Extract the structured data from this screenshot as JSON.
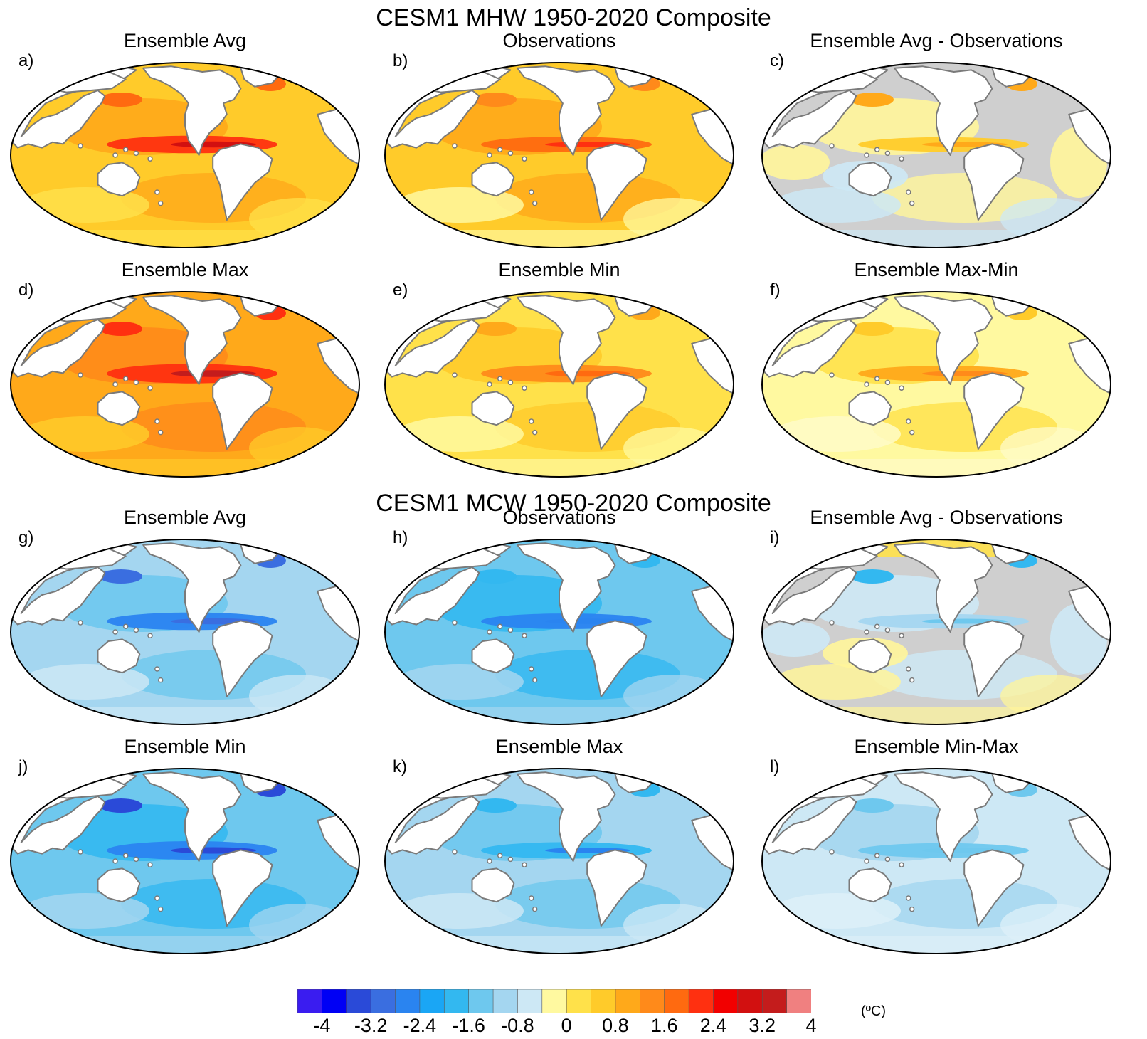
{
  "titles": {
    "top": "CESM1 MHW 1950-2020 Composite",
    "bottom": "CESM1 MCW 1950-2020 Composite"
  },
  "panels": [
    {
      "letter": "a)",
      "title": "Ensemble Avg",
      "scheme": "warm-strong"
    },
    {
      "letter": "b)",
      "title": "Observations",
      "scheme": "warm-obs"
    },
    {
      "letter": "c)",
      "title": "Ensemble Avg - Observations",
      "scheme": "diff-warm"
    },
    {
      "letter": "d)",
      "title": "Ensemble Max",
      "scheme": "warm-max"
    },
    {
      "letter": "e)",
      "title": "Ensemble Min",
      "scheme": "warm-min"
    },
    {
      "letter": "f)",
      "title": "Ensemble Max-Min",
      "scheme": "warm-range"
    },
    {
      "letter": "g)",
      "title": "Ensemble Avg",
      "scheme": "cool-strong"
    },
    {
      "letter": "h)",
      "title": "Observations",
      "scheme": "cool-obs"
    },
    {
      "letter": "i)",
      "title": "Ensemble Avg - Observations",
      "scheme": "diff-cool"
    },
    {
      "letter": "j)",
      "title": "Ensemble Min",
      "scheme": "cool-max"
    },
    {
      "letter": "k)",
      "title": "Ensemble Max",
      "scheme": "cool-min"
    },
    {
      "letter": "l)",
      "title": "Ensemble Min-Max",
      "scheme": "cool-range"
    }
  ],
  "colorbar": {
    "unit": "(ºC)",
    "ticks": [
      "-4",
      "-3.2",
      "-2.4",
      "-1.6",
      "-0.8",
      "0",
      "0.8",
      "1.6",
      "2.4",
      "3.2",
      "4"
    ],
    "colors": [
      "#3a1cf0",
      "#0000f5",
      "#2a4ad8",
      "#3a6ee0",
      "#2a84f0",
      "#1aa6f5",
      "#33b8f0",
      "#6ec8ee",
      "#a4d6f0",
      "#cde8f5",
      "#fff9a0",
      "#ffe14a",
      "#ffcb2a",
      "#ffa91a",
      "#ff8a1a",
      "#ff6a10",
      "#ff3010",
      "#f20000",
      "#d21010",
      "#c41c1c",
      "#f08080"
    ]
  }
}
